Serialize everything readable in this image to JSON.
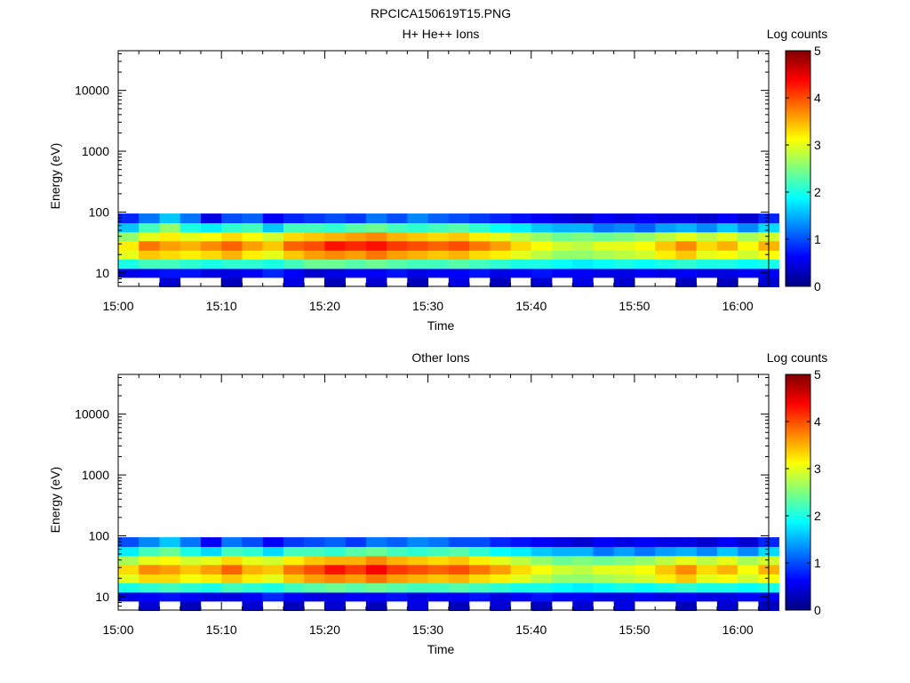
{
  "figure_title": "RPCICA150619T15.PNG",
  "colors": {
    "background": "#ffffff",
    "axis": "#000000",
    "colormap": [
      "#00007f",
      "#0000ff",
      "#007fff",
      "#00ffff",
      "#7fff7f",
      "#ffff00",
      "#ff7f00",
      "#ff0000",
      "#7f0000"
    ]
  },
  "chart_data": [
    {
      "type": "heatmap",
      "title": "H+ He++ Ions",
      "xlabel": "Time",
      "ylabel": "Energy (eV)",
      "y_scale": "log",
      "xlim": [
        "15:00",
        "16:03"
      ],
      "ylim": [
        6,
        45000
      ],
      "x_ticks": [
        "15:00",
        "15:10",
        "15:20",
        "15:30",
        "15:40",
        "15:50",
        "16:00"
      ],
      "y_ticks": [
        "10",
        "100",
        "1000",
        "10000"
      ],
      "colorbar": {
        "label": "Log counts",
        "range": [
          0,
          5
        ],
        "ticks": [
          "0",
          "1",
          "2",
          "3",
          "4",
          "5"
        ]
      },
      "time_bins": [
        "15:00",
        "15:02",
        "15:04",
        "15:06",
        "15:08",
        "15:10",
        "15:12",
        "15:14",
        "15:16",
        "15:18",
        "15:20",
        "15:22",
        "15:24",
        "15:26",
        "15:28",
        "15:30",
        "15:32",
        "15:34",
        "15:36",
        "15:38",
        "15:40",
        "15:42",
        "15:44",
        "15:46",
        "15:48",
        "15:50",
        "15:52",
        "15:54",
        "15:56",
        "15:58",
        "16:00",
        "16:02"
      ],
      "energy_bins_eV": [
        7,
        10,
        14,
        20,
        28,
        40,
        56,
        79
      ],
      "log_counts": [
        [
          0,
          0.5,
          2.0,
          3.0,
          3.2,
          2.6,
          1.6,
          0.8
        ],
        [
          0,
          0.6,
          2.2,
          3.4,
          3.8,
          3.0,
          2.2,
          1.2
        ],
        [
          0.4,
          0.7,
          2.2,
          3.3,
          3.6,
          3.2,
          2.6,
          1.6
        ],
        [
          0,
          0.7,
          2.1,
          3.2,
          3.5,
          3.0,
          2.0,
          1.2
        ],
        [
          0,
          0.5,
          2.0,
          3.3,
          3.7,
          3.1,
          1.8,
          0.5
        ],
        [
          0.3,
          0.5,
          2.1,
          3.5,
          3.9,
          3.3,
          2.1,
          1.0
        ],
        [
          0,
          0.6,
          2.1,
          3.2,
          3.6,
          3.1,
          2.2,
          1.1
        ],
        [
          0,
          0.8,
          2.0,
          3.0,
          3.4,
          2.9,
          1.6,
          0.6
        ],
        [
          0.5,
          0.6,
          2.2,
          3.4,
          3.9,
          3.3,
          2.2,
          0.8
        ],
        [
          0,
          0.4,
          2.4,
          3.6,
          4.0,
          3.4,
          2.2,
          0.9
        ],
        [
          0.3,
          0.5,
          2.4,
          3.7,
          4.3,
          3.5,
          2.1,
          1.0
        ],
        [
          0,
          0.6,
          2.3,
          3.6,
          4.2,
          3.6,
          2.3,
          0.9
        ],
        [
          0.4,
          0.6,
          2.4,
          3.8,
          4.3,
          3.7,
          2.4,
          1.2
        ],
        [
          0,
          0.7,
          2.3,
          3.6,
          4.1,
          3.5,
          2.2,
          1.0
        ],
        [
          0.3,
          0.5,
          2.2,
          3.5,
          4.0,
          3.4,
          2.1,
          1.3
        ],
        [
          0,
          0.6,
          2.2,
          3.4,
          3.9,
          3.3,
          2.2,
          1.1
        ],
        [
          0.5,
          0.6,
          2.3,
          3.5,
          4.0,
          3.4,
          2.3,
          1.0
        ],
        [
          0,
          0.7,
          2.2,
          3.3,
          3.8,
          3.2,
          2.1,
          0.9
        ],
        [
          0.3,
          0.5,
          2.1,
          3.2,
          3.6,
          3.0,
          1.9,
          0.8
        ],
        [
          0,
          0.6,
          2.0,
          3.0,
          3.3,
          2.8,
          1.8,
          0.7
        ],
        [
          0.4,
          0.7,
          2.0,
          2.8,
          3.1,
          2.6,
          1.6,
          0.6
        ],
        [
          0,
          0.6,
          1.9,
          2.6,
          2.9,
          2.4,
          1.5,
          0.5
        ],
        [
          0.5,
          0.6,
          1.8,
          2.6,
          2.8,
          2.5,
          1.5,
          0.4
        ],
        [
          0,
          0.5,
          1.9,
          2.7,
          3.0,
          2.4,
          1.2,
          0.6
        ],
        [
          0.4,
          0.5,
          2.0,
          2.8,
          3.0,
          2.5,
          1.3,
          0.5
        ],
        [
          0,
          0.6,
          1.9,
          2.9,
          3.1,
          2.6,
          1.1,
          0.6
        ],
        [
          0,
          0.5,
          2.0,
          3.2,
          3.4,
          2.8,
          1.4,
          0.5
        ],
        [
          0.3,
          0.6,
          2.1,
          3.4,
          3.7,
          3.0,
          1.5,
          0.5
        ],
        [
          0,
          0.5,
          2.0,
          3.0,
          3.3,
          2.8,
          1.3,
          0.4
        ],
        [
          0.3,
          0.5,
          2.0,
          3.1,
          3.5,
          3.0,
          1.6,
          0.6
        ],
        [
          0,
          0.6,
          1.9,
          2.9,
          3.1,
          2.7,
          1.3,
          0.4
        ],
        [
          0.4,
          0.6,
          2.0,
          3.1,
          3.5,
          2.9,
          1.7,
          0.8
        ]
      ]
    },
    {
      "type": "heatmap",
      "title": "Other Ions",
      "xlabel": "Time",
      "ylabel": "Energy (eV)",
      "y_scale": "log",
      "xlim": [
        "15:00",
        "16:03"
      ],
      "ylim": [
        6,
        45000
      ],
      "x_ticks": [
        "15:00",
        "15:10",
        "15:20",
        "15:30",
        "15:40",
        "15:50",
        "16:00"
      ],
      "y_ticks": [
        "10",
        "100",
        "1000",
        "10000"
      ],
      "colorbar": {
        "label": "Log counts",
        "range": [
          0,
          5
        ],
        "ticks": [
          "0",
          "1",
          "2",
          "3",
          "4",
          "5"
        ]
      },
      "time_bins": [
        "15:00",
        "15:02",
        "15:04",
        "15:06",
        "15:08",
        "15:10",
        "15:12",
        "15:14",
        "15:16",
        "15:18",
        "15:20",
        "15:22",
        "15:24",
        "15:26",
        "15:28",
        "15:30",
        "15:32",
        "15:34",
        "15:36",
        "15:38",
        "15:40",
        "15:42",
        "15:44",
        "15:46",
        "15:48",
        "15:50",
        "15:52",
        "15:54",
        "15:56",
        "15:58",
        "16:00",
        "16:02"
      ],
      "energy_bins_eV": [
        7,
        10,
        14,
        20,
        28,
        40,
        56,
        79
      ],
      "log_counts": [
        [
          0,
          0.5,
          2.0,
          3.0,
          3.3,
          2.7,
          1.8,
          1.0
        ],
        [
          0.4,
          0.6,
          2.1,
          3.3,
          3.7,
          3.0,
          2.2,
          1.3
        ],
        [
          0,
          0.7,
          2.2,
          3.3,
          3.6,
          3.1,
          2.4,
          1.6
        ],
        [
          0.3,
          0.6,
          2.1,
          3.1,
          3.4,
          2.9,
          2.0,
          1.2
        ],
        [
          0,
          0.5,
          2.0,
          3.2,
          3.6,
          3.0,
          1.7,
          0.6
        ],
        [
          0,
          0.5,
          2.2,
          3.4,
          3.9,
          3.3,
          2.2,
          1.2
        ],
        [
          0.4,
          0.6,
          2.1,
          3.2,
          3.5,
          3.0,
          2.1,
          1.0
        ],
        [
          0,
          0.8,
          2.0,
          3.0,
          3.4,
          2.9,
          1.7,
          0.6
        ],
        [
          0.3,
          0.6,
          2.2,
          3.4,
          3.8,
          3.2,
          2.2,
          0.9
        ],
        [
          0,
          0.5,
          2.3,
          3.6,
          4.0,
          3.4,
          2.2,
          1.0
        ],
        [
          0.4,
          0.5,
          2.4,
          3.7,
          4.3,
          3.5,
          2.1,
          1.1
        ],
        [
          0,
          0.6,
          2.3,
          3.6,
          4.1,
          3.5,
          2.3,
          0.9
        ],
        [
          0.3,
          0.6,
          2.4,
          3.8,
          4.4,
          3.7,
          2.4,
          1.2
        ],
        [
          0,
          0.7,
          2.3,
          3.6,
          4.1,
          3.5,
          2.2,
          1.1
        ],
        [
          0.5,
          0.5,
          2.2,
          3.5,
          4.0,
          3.4,
          2.1,
          1.3
        ],
        [
          0,
          0.6,
          2.2,
          3.4,
          3.9,
          3.3,
          2.2,
          1.2
        ],
        [
          0.3,
          0.6,
          2.3,
          3.5,
          4.0,
          3.4,
          2.3,
          1.0
        ],
        [
          0,
          0.7,
          2.2,
          3.3,
          3.8,
          3.2,
          2.1,
          1.0
        ],
        [
          0.4,
          0.5,
          2.1,
          3.2,
          3.6,
          3.0,
          1.9,
          0.8
        ],
        [
          0,
          0.6,
          2.0,
          3.0,
          3.3,
          2.8,
          1.8,
          0.7
        ],
        [
          0.3,
          0.7,
          2.0,
          2.8,
          3.1,
          2.6,
          1.6,
          0.6
        ],
        [
          0,
          0.6,
          1.9,
          2.6,
          2.9,
          2.4,
          1.5,
          0.5
        ],
        [
          0.4,
          0.6,
          1.8,
          2.6,
          2.8,
          2.5,
          1.5,
          0.4
        ],
        [
          0,
          0.5,
          1.9,
          2.7,
          3.0,
          2.4,
          1.2,
          0.6
        ],
        [
          0.5,
          0.5,
          2.0,
          2.8,
          3.0,
          2.5,
          1.4,
          0.5
        ],
        [
          0,
          0.6,
          1.9,
          2.9,
          3.1,
          2.6,
          1.2,
          0.6
        ],
        [
          0,
          0.5,
          2.0,
          3.2,
          3.4,
          2.8,
          1.4,
          0.5
        ],
        [
          0.3,
          0.6,
          2.1,
          3.4,
          3.7,
          3.0,
          1.5,
          0.5
        ],
        [
          0,
          0.5,
          2.0,
          3.0,
          3.3,
          2.8,
          1.3,
          0.4
        ],
        [
          0.4,
          0.5,
          2.0,
          3.1,
          3.5,
          3.0,
          1.6,
          0.6
        ],
        [
          0,
          0.6,
          1.9,
          2.9,
          3.1,
          2.7,
          1.3,
          0.4
        ],
        [
          0.3,
          0.6,
          2.0,
          3.1,
          3.5,
          2.9,
          1.7,
          0.8
        ]
      ]
    }
  ]
}
